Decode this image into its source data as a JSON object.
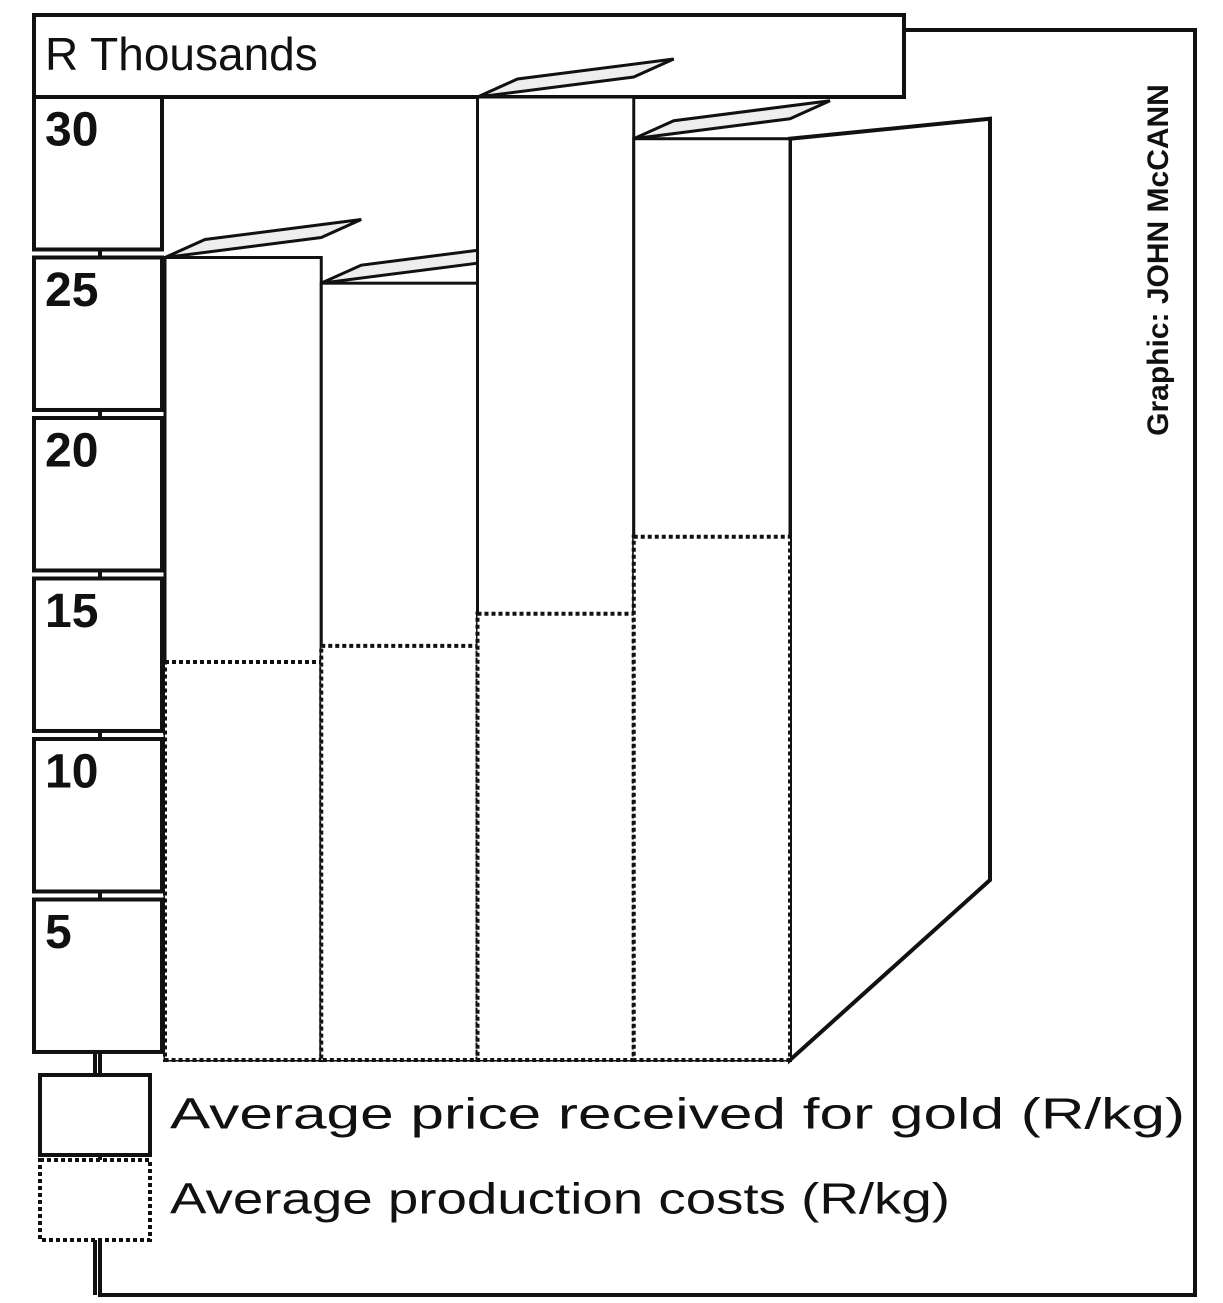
{
  "chart_data": {
    "type": "bar",
    "y_label": "R Thousands",
    "credit": "Graphic: JOHN McCANN",
    "categories": [
      null,
      null,
      null,
      null
    ],
    "series": [
      {
        "name": "Average price received for gold (R/kg)",
        "color": "#ffffff",
        "values": [
          25.0,
          24.2,
          30.0,
          28.7
        ]
      },
      {
        "name": "Average production costs (R/kg)",
        "color": "#ffffff",
        "values": [
          12.4,
          12.9,
          13.9,
          16.3
        ]
      }
    ],
    "ylim": [
      0,
      30
    ],
    "yticks": [
      5,
      10,
      15,
      20,
      25,
      30
    ]
  }
}
